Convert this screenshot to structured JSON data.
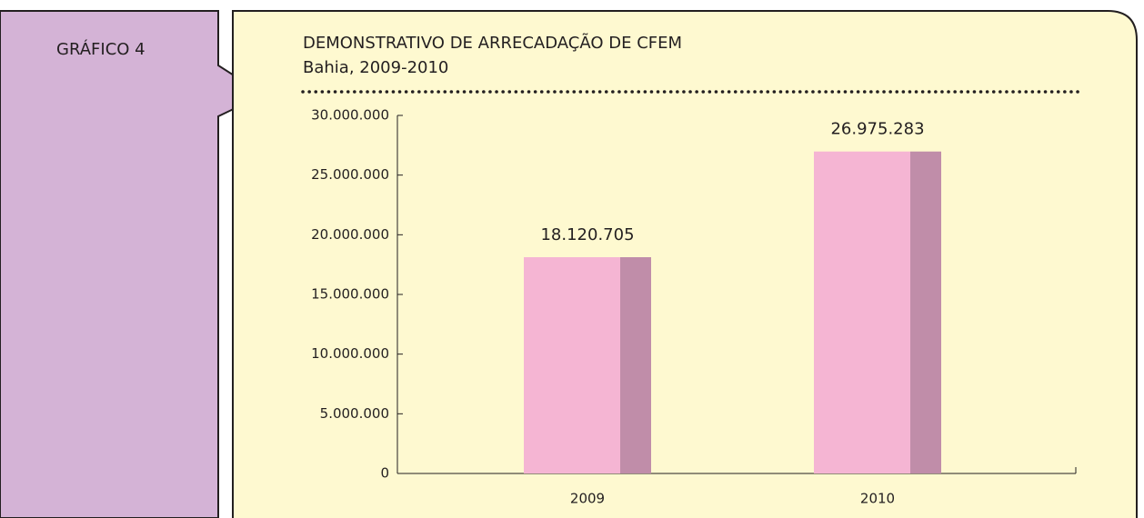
{
  "chart_data": {
    "type": "bar",
    "label": "GRÁFICO 4",
    "title": "DEMONSTRATIVO DE ARRECADAÇÃO DE CFEM",
    "subtitle": "Bahia, 2009-2010",
    "categories": [
      "2009",
      "2010"
    ],
    "values": [
      18120705,
      26975283
    ],
    "value_labels": [
      "18.120.705",
      "26.975.283"
    ],
    "color": "#f5b5d3",
    "side_color": "#c08da9",
    "ylim": [
      0,
      30000000
    ],
    "yticks": [
      0,
      {
        "value": 5000000,
        "label": "5.000.000"
      },
      {
        "value": 10000000,
        "label": "10.000.000"
      },
      {
        "value": 15000000,
        "label": "15.000.000"
      },
      {
        "value": 20000000,
        "label": "20.000.000"
      },
      {
        "value": 25000000,
        "label": "25.000.000"
      },
      {
        "value": 30000000,
        "label": "30.000.000"
      }
    ]
  }
}
